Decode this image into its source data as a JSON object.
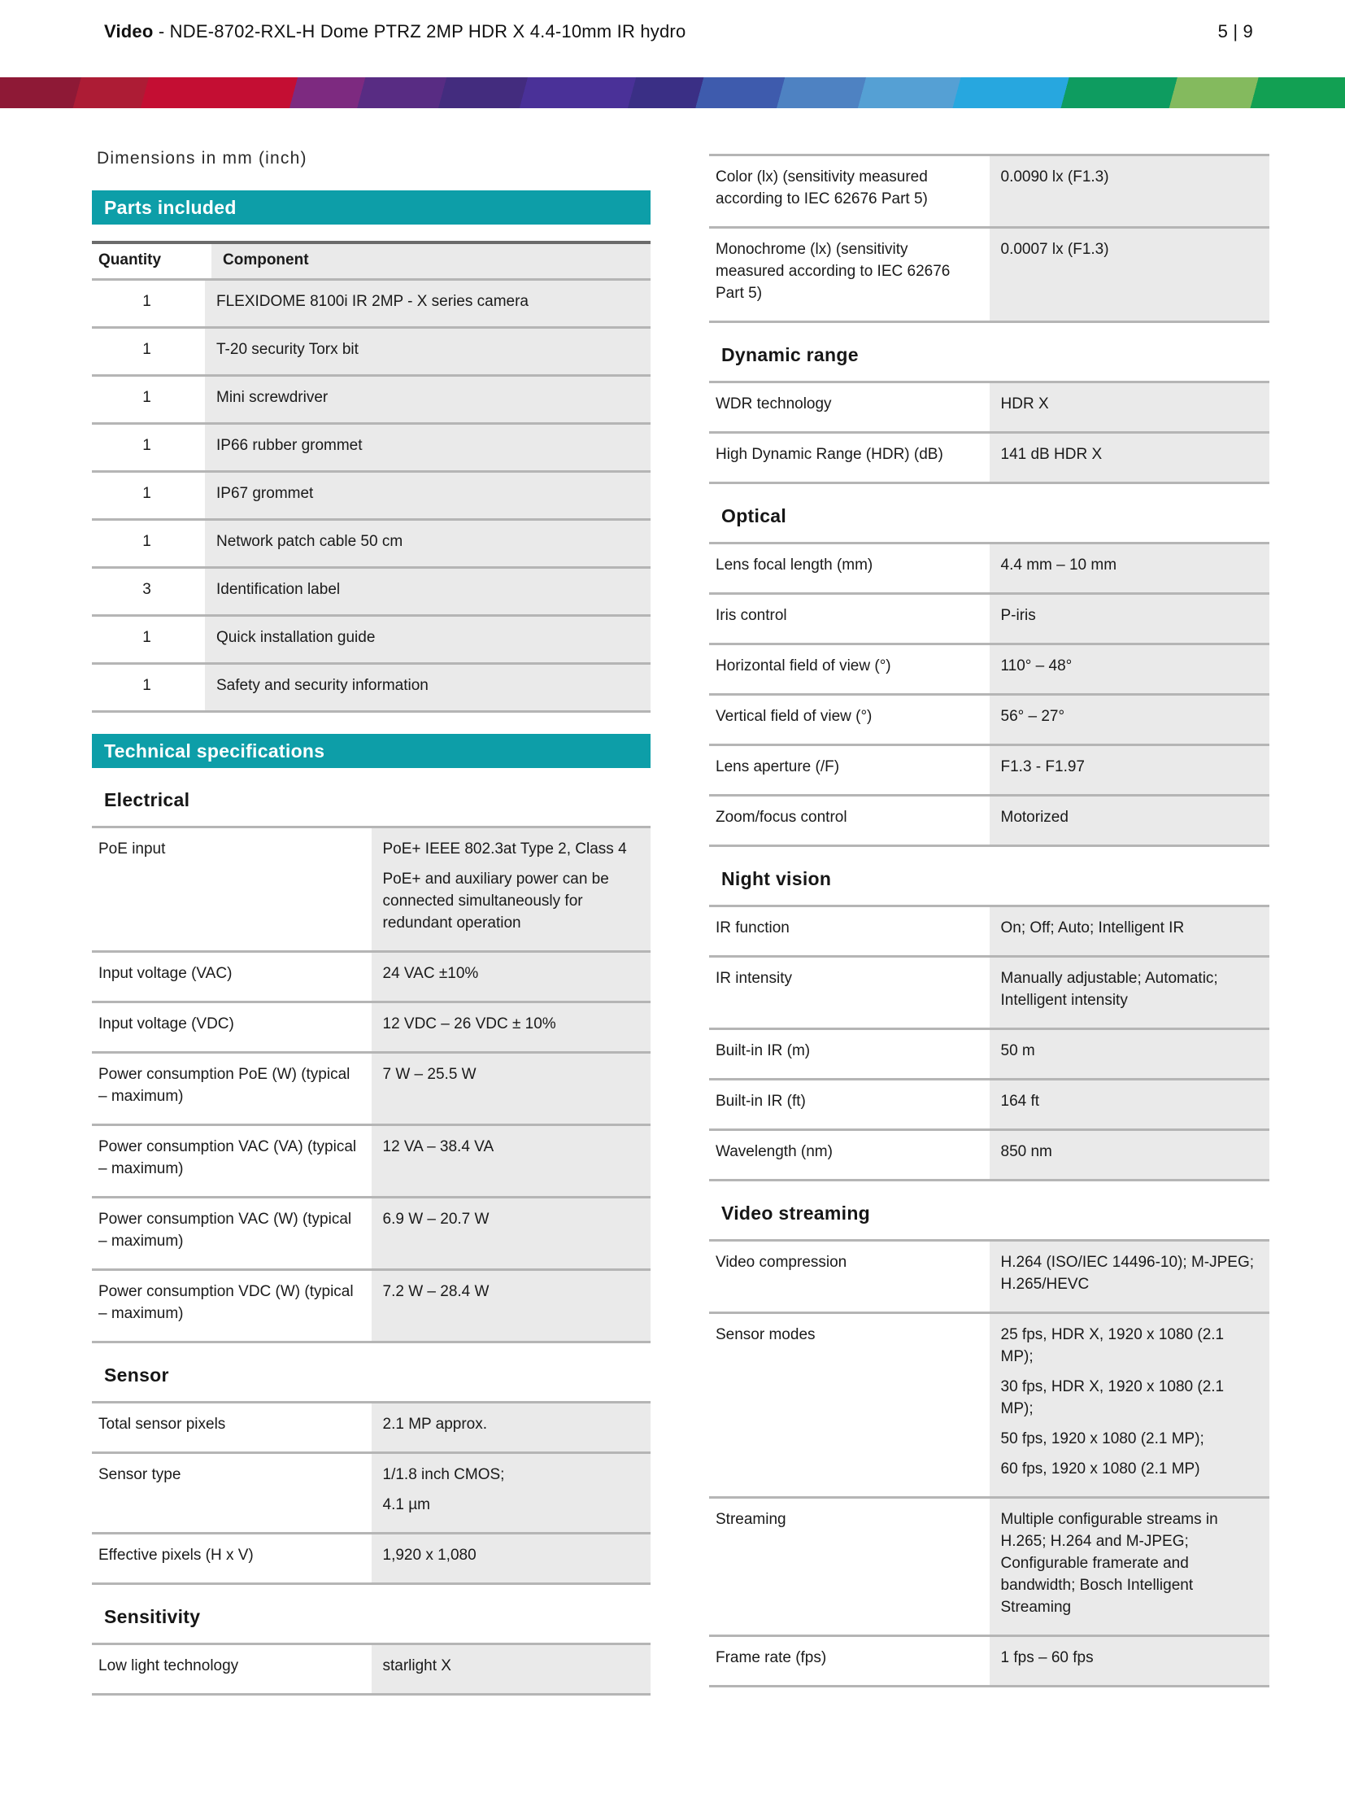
{
  "header": {
    "product_family": "Video",
    "title_rest": " - NDE-8702-RXL-H Dome PTRZ 2MP HDR X 4.4-10mm IR hydro",
    "page_indicator": "5 | 9"
  },
  "colors": {
    "teal_banner": "#0D9EA8",
    "value_cell_bg": "#EAEAEA",
    "separator": "#B5B5B5",
    "parts_top_border": "#6B6B6B",
    "bar_segments": [
      {
        "color": "#8E1936",
        "width": 6
      },
      {
        "color": "#AD1C35",
        "width": 5
      },
      {
        "color": "#C40E33",
        "width": 11
      },
      {
        "color": "#7D2A80",
        "width": 5
      },
      {
        "color": "#582C83",
        "width": 6
      },
      {
        "color": "#432C7E",
        "width": 6
      },
      {
        "color": "#4A3198",
        "width": 8
      },
      {
        "color": "#3A2F85",
        "width": 5
      },
      {
        "color": "#3E5BAD",
        "width": 6
      },
      {
        "color": "#4E82C2",
        "width": 6
      },
      {
        "color": "#55A0D4",
        "width": 7
      },
      {
        "color": "#27A7DF",
        "width": 8
      },
      {
        "color": "#0E9C60",
        "width": 8
      },
      {
        "color": "#84BA5E",
        "width": 6
      },
      {
        "color": "#12A053",
        "width": 7
      }
    ]
  },
  "left_column": {
    "dimensions_note": "Dimensions in mm (inch)",
    "parts": {
      "title": "Parts included",
      "col_quantity": "Quantity",
      "col_component": "Component",
      "rows": [
        {
          "quantity": "1",
          "component": "FLEXIDOME 8100i IR 2MP - X series camera"
        },
        {
          "quantity": "1",
          "component": "T-20 security Torx bit"
        },
        {
          "quantity": "1",
          "component": "Mini screwdriver"
        },
        {
          "quantity": "1",
          "component": "IP66 rubber grommet"
        },
        {
          "quantity": "1",
          "component": "IP67 grommet"
        },
        {
          "quantity": "1",
          "component": "Network patch cable 50 cm"
        },
        {
          "quantity": "3",
          "component": "Identification label"
        },
        {
          "quantity": "1",
          "component": "Quick installation guide"
        },
        {
          "quantity": "1",
          "component": "Safety and security information"
        }
      ]
    },
    "tech_title": "Technical specifications",
    "sections": [
      {
        "name": "Electrical",
        "rows": [
          {
            "label": "PoE input",
            "value": [
              "PoE+ IEEE 802.3at Type 2, Class 4",
              "PoE+ and auxiliary power can be connected simultaneously for redundant operation"
            ]
          },
          {
            "label": "Input voltage (VAC)",
            "value": [
              "24 VAC ±10%"
            ]
          },
          {
            "label": "Input voltage (VDC)",
            "value": [
              "12 VDC – 26 VDC ± 10%"
            ]
          },
          {
            "label": "Power consumption PoE (W) (typical – maximum)",
            "value": [
              "7 W – 25.5 W"
            ]
          },
          {
            "label": "Power consumption VAC (VA) (typical – maximum)",
            "value": [
              "12 VA – 38.4 VA"
            ]
          },
          {
            "label": "Power consumption VAC (W) (typical – maximum)",
            "value": [
              "6.9 W – 20.7 W"
            ]
          },
          {
            "label": "Power consumption VDC (W) (typical – maximum)",
            "value": [
              "7.2 W – 28.4 W"
            ]
          }
        ]
      },
      {
        "name": "Sensor",
        "rows": [
          {
            "label": "Total sensor pixels",
            "value": [
              "2.1 MP approx."
            ]
          },
          {
            "label": "Sensor type",
            "value": [
              "1/1.8 inch CMOS;",
              "4.1 µm"
            ]
          },
          {
            "label": "Effective pixels (H x V)",
            "value": [
              "1,920 x 1,080"
            ]
          }
        ]
      },
      {
        "name": "Sensitivity",
        "rows": [
          {
            "label": "Low light technology",
            "value": [
              "starlight X"
            ]
          }
        ]
      }
    ]
  },
  "right_column": {
    "lead_rows": [
      {
        "label": "Color (lx) (sensitivity measured according to IEC 62676 Part 5)",
        "value": [
          "0.0090 lx (F1.3)"
        ]
      },
      {
        "label": "Monochrome (lx) (sensitivity measured according to IEC 62676 Part 5)",
        "value": [
          "0.0007 lx (F1.3)"
        ]
      }
    ],
    "sections": [
      {
        "name": "Dynamic range",
        "rows": [
          {
            "label": "WDR technology",
            "value": [
              "HDR X"
            ]
          },
          {
            "label": "High Dynamic Range (HDR) (dB)",
            "value": [
              "141 dB HDR X"
            ]
          }
        ]
      },
      {
        "name": "Optical",
        "rows": [
          {
            "label": "Lens focal length (mm)",
            "value": [
              "4.4 mm – 10 mm"
            ]
          },
          {
            "label": "Iris control",
            "value": [
              "P-iris"
            ]
          },
          {
            "label": "Horizontal field of view (°)",
            "value": [
              "110° – 48°"
            ]
          },
          {
            "label": "Vertical field of view (°)",
            "value": [
              "56° – 27°"
            ]
          },
          {
            "label": "Lens aperture (/F)",
            "value": [
              "F1.3 - F1.97"
            ]
          },
          {
            "label": "Zoom/focus control",
            "value": [
              "Motorized"
            ]
          }
        ]
      },
      {
        "name": "Night vision",
        "rows": [
          {
            "label": "IR function",
            "value": [
              "On; Off; Auto; Intelligent IR"
            ]
          },
          {
            "label": "IR intensity",
            "value": [
              "Manually adjustable; Automatic; Intelligent intensity"
            ]
          },
          {
            "label": "Built-in IR (m)",
            "value": [
              "50 m"
            ]
          },
          {
            "label": "Built-in IR (ft)",
            "value": [
              "164 ft"
            ]
          },
          {
            "label": "Wavelength (nm)",
            "value": [
              "850 nm"
            ]
          }
        ]
      },
      {
        "name": "Video streaming",
        "rows": [
          {
            "label": "Video compression",
            "value": [
              "H.264 (ISO/IEC 14496-10); M-JPEG; H.265/HEVC"
            ]
          },
          {
            "label": "Sensor modes",
            "value": [
              "25 fps, HDR X, 1920 x 1080 (2.1 MP);",
              "30 fps, HDR X, 1920 x 1080 (2.1 MP);",
              "50 fps, 1920 x 1080 (2.1 MP);",
              "60 fps, 1920 x 1080 (2.1 MP)"
            ]
          },
          {
            "label": "Streaming",
            "value": [
              "Multiple configurable streams in H.265; H.264 and M-JPEG; Configurable framerate and bandwidth; Bosch Intelligent Streaming"
            ]
          },
          {
            "label": "Frame rate (fps)",
            "value": [
              "1 fps – 60 fps"
            ]
          }
        ]
      }
    ]
  }
}
